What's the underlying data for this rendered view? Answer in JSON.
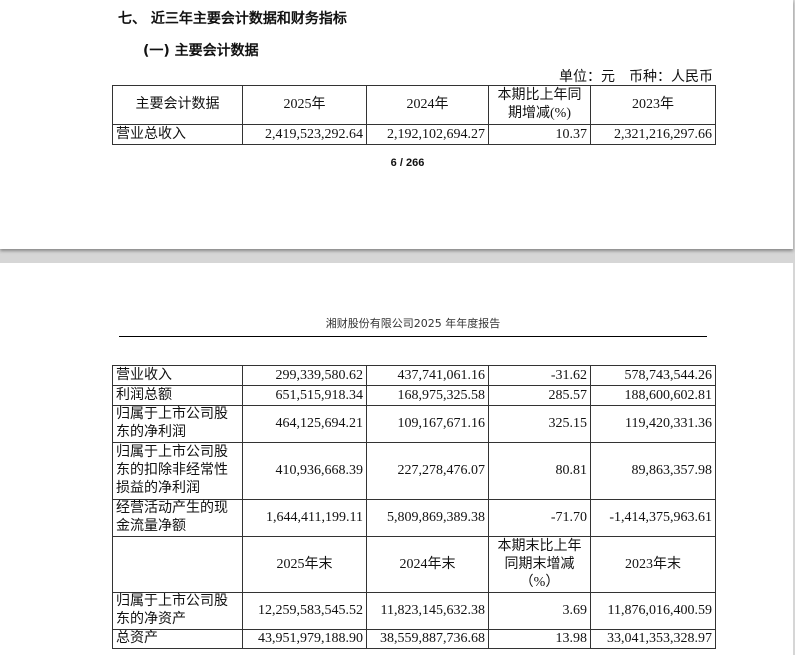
{
  "page1": {
    "section_title": "七、 近三年主要会计数据和财务指标",
    "subsection_title": "(一) 主要会计数据",
    "unit_note": "单位：元　币种：人民币",
    "table": {
      "headers": [
        "主要会计数据",
        "2025年",
        "2024年",
        "本期比上年同期增减(%)",
        "2023年"
      ],
      "rows": [
        [
          "营业总收入",
          "2,419,523,292.64",
          "2,192,102,694.27",
          "10.37",
          "2,321,216,297.66"
        ]
      ]
    },
    "page_number": "6 / 266"
  },
  "page2": {
    "running_header": "湘财股份有限公司2025 年年度报告",
    "table": {
      "rows": [
        [
          "营业收入",
          "299,339,580.62",
          "437,741,061.16",
          "-31.62",
          "578,743,544.26"
        ],
        [
          "利润总额",
          "651,515,918.34",
          "168,975,325.58",
          "285.57",
          "188,600,602.81"
        ],
        [
          "归属于上市公司股东的净利润",
          "464,125,694.21",
          "109,167,671.16",
          "325.15",
          "119,420,331.36"
        ],
        [
          "归属于上市公司股东的扣除非经常性损益的净利润",
          "410,936,668.39",
          "227,278,476.07",
          "80.81",
          "89,863,357.98"
        ],
        [
          "经营活动产生的现金流量净额",
          "1,644,411,199.11",
          "5,809,869,389.38",
          "-71.70",
          "-1,414,375,963.61"
        ]
      ],
      "headers2": [
        "",
        "2025年末",
        "2024年末",
        "本期末比上年同期末增减（%）",
        "2023年末"
      ],
      "rows2": [
        [
          "归属于上市公司股东的净资产",
          "12,259,583,545.52",
          "11,823,145,632.38",
          "3.69",
          "11,876,016,400.59"
        ],
        [
          "总资产",
          "43,951,979,188.90",
          "38,559,887,736.68",
          "13.98",
          "33,041,353,328.97"
        ]
      ]
    }
  }
}
